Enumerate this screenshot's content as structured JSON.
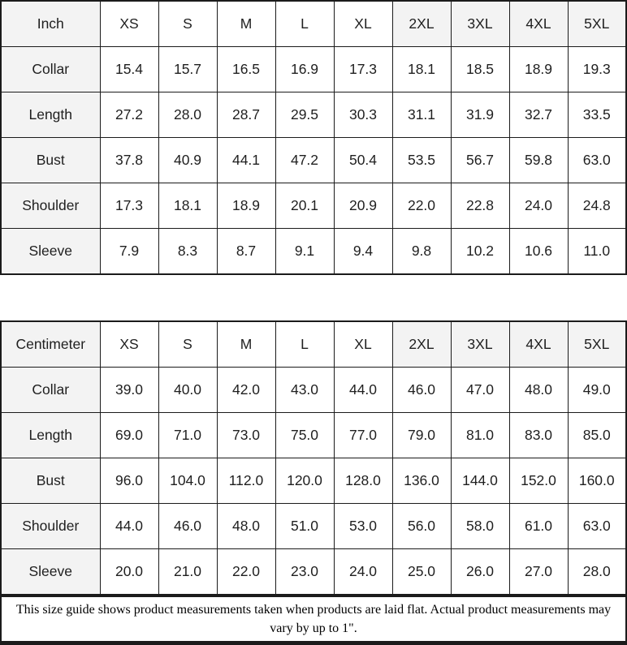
{
  "chart_data": [
    {
      "type": "table",
      "title": "Inch size table",
      "unit_label": "Inch",
      "columns": [
        "Inch",
        "XS",
        "S",
        "M",
        "L",
        "XL",
        "2XL",
        "3XL",
        "4XL",
        "5XL"
      ],
      "shaded_header_columns": [
        "2XL",
        "3XL",
        "4XL",
        "5XL"
      ],
      "rows": [
        [
          "Collar",
          "15.4",
          "15.7",
          "16.5",
          "16.9",
          "17.3",
          "18.1",
          "18.5",
          "18.9",
          "19.3"
        ],
        [
          "Length",
          "27.2",
          "28.0",
          "28.7",
          "29.5",
          "30.3",
          "31.1",
          "31.9",
          "32.7",
          "33.5"
        ],
        [
          "Bust",
          "37.8",
          "40.9",
          "44.1",
          "47.2",
          "50.4",
          "53.5",
          "56.7",
          "59.8",
          "63.0"
        ],
        [
          "Shoulder",
          "17.3",
          "18.1",
          "18.9",
          "20.1",
          "20.9",
          "22.0",
          "22.8",
          "24.0",
          "24.8"
        ],
        [
          "Sleeve",
          "7.9",
          "8.3",
          "8.7",
          "9.1",
          "9.4",
          "9.8",
          "10.2",
          "10.6",
          "11.0"
        ]
      ]
    },
    {
      "type": "table",
      "title": "Centimeter size table",
      "unit_label": "Centimeter",
      "columns": [
        "Centimeter",
        "XS",
        "S",
        "M",
        "L",
        "XL",
        "2XL",
        "3XL",
        "4XL",
        "5XL"
      ],
      "shaded_header_columns": [
        "2XL",
        "3XL",
        "4XL",
        "5XL"
      ],
      "rows": [
        [
          "Collar",
          "39.0",
          "40.0",
          "42.0",
          "43.0",
          "44.0",
          "46.0",
          "47.0",
          "48.0",
          "49.0"
        ],
        [
          "Length",
          "69.0",
          "71.0",
          "73.0",
          "75.0",
          "77.0",
          "79.0",
          "81.0",
          "83.0",
          "85.0"
        ],
        [
          "Bust",
          "96.0",
          "104.0",
          "112.0",
          "120.0",
          "128.0",
          "136.0",
          "144.0",
          "152.0",
          "160.0"
        ],
        [
          "Shoulder",
          "44.0",
          "46.0",
          "48.0",
          "51.0",
          "53.0",
          "56.0",
          "58.0",
          "61.0",
          "63.0"
        ],
        [
          "Sleeve",
          "20.0",
          "21.0",
          "22.0",
          "23.0",
          "24.0",
          "25.0",
          "26.0",
          "27.0",
          "28.0"
        ]
      ]
    }
  ],
  "footer": {
    "note": "This size guide shows product measurements taken when products are laid flat. Actual product measurements may vary by up to 1\"."
  },
  "colors": {
    "border": "#1b1b1b",
    "shaded_cell": "#f3f3f3",
    "cell_background": "#ffffff",
    "text": "#1f1f1f"
  }
}
